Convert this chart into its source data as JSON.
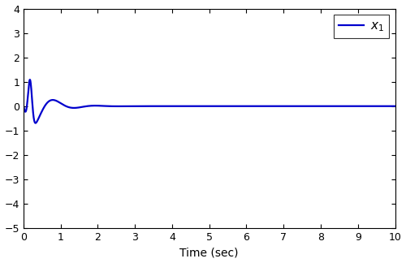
{
  "title": "",
  "xlabel": "Time (sec)",
  "ylabel": "",
  "xlim": [
    0,
    10
  ],
  "ylim": [
    -5,
    4
  ],
  "xticks": [
    0,
    1,
    2,
    3,
    4,
    5,
    6,
    7,
    8,
    9,
    10
  ],
  "yticks": [
    -5,
    -4,
    -3,
    -2,
    -1,
    0,
    1,
    2,
    3,
    4
  ],
  "line_color": "#0000CD",
  "line_width": 1.6,
  "legend_label": "$x_1$",
  "background_color": "#ffffff",
  "grid": false,
  "peak_time": 0.18,
  "peak_val": 1.85,
  "trough_time": 0.62,
  "trough_val": -1.28
}
